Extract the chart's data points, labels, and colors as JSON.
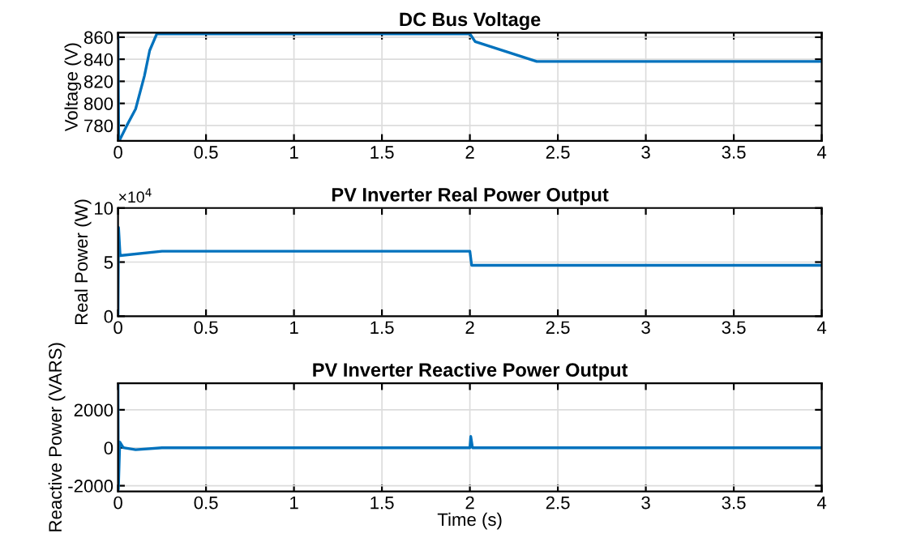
{
  "chart_data": [
    {
      "type": "line",
      "title": "DC Bus Voltage",
      "ylabel": "Voltage (V)",
      "grid": true,
      "series": [
        {
          "color": "#0072bd",
          "x": [
            0,
            0.004,
            0.01,
            0.05,
            0.1,
            0.15,
            0.18,
            0.22,
            2.0,
            2.03,
            2.38,
            4
          ],
          "values": [
            860,
            767,
            767,
            780,
            795,
            825,
            848,
            863,
            863,
            856,
            838,
            838
          ]
        }
      ],
      "xlim": [
        0,
        4
      ],
      "xticks": [
        0,
        0.5,
        1,
        1.5,
        2,
        2.5,
        3,
        3.5,
        4
      ],
      "ylim": [
        766,
        864
      ],
      "yticks": [
        780,
        800,
        820,
        840,
        860
      ]
    },
    {
      "type": "line",
      "title": "PV Inverter Real Power Output",
      "ylabel": "Real Power (W)",
      "grid": true,
      "annotations": [
        "×10$^{4}$"
      ],
      "series": [
        {
          "color": "#0072bd",
          "x": [
            0,
            0.003,
            0.012,
            0.25,
            2.0,
            2.01,
            4
          ],
          "values": [
            0,
            8.2,
            5.6,
            6.0,
            6.0,
            4.7,
            4.7
          ]
        }
      ],
      "xlim": [
        0,
        4
      ],
      "xticks": [
        0,
        0.5,
        1,
        1.5,
        2,
        2.5,
        3,
        3.5,
        4
      ],
      "ylim": [
        0,
        10
      ],
      "yticks": [
        0,
        5,
        10
      ]
    },
    {
      "type": "line",
      "title": "PV Inverter Reactive Power Output",
      "ylabel": "Reactive Power (VARS)",
      "xlabel": "Time (s)",
      "grid": true,
      "series": [
        {
          "color": "#0072bd",
          "x": [
            0,
            0.002,
            0.01,
            0.03,
            0.1,
            0.25,
            2.0,
            2.005,
            2.015,
            4
          ],
          "values": [
            3300,
            -2200,
            300,
            0,
            -100,
            0,
            0,
            600,
            0,
            0
          ]
        }
      ],
      "xlim": [
        0,
        4
      ],
      "xticks": [
        0,
        0.5,
        1,
        1.5,
        2,
        2.5,
        3,
        3.5,
        4
      ],
      "ylim": [
        -2300,
        3400
      ],
      "yticks": [
        -2000,
        0,
        2000
      ]
    }
  ]
}
